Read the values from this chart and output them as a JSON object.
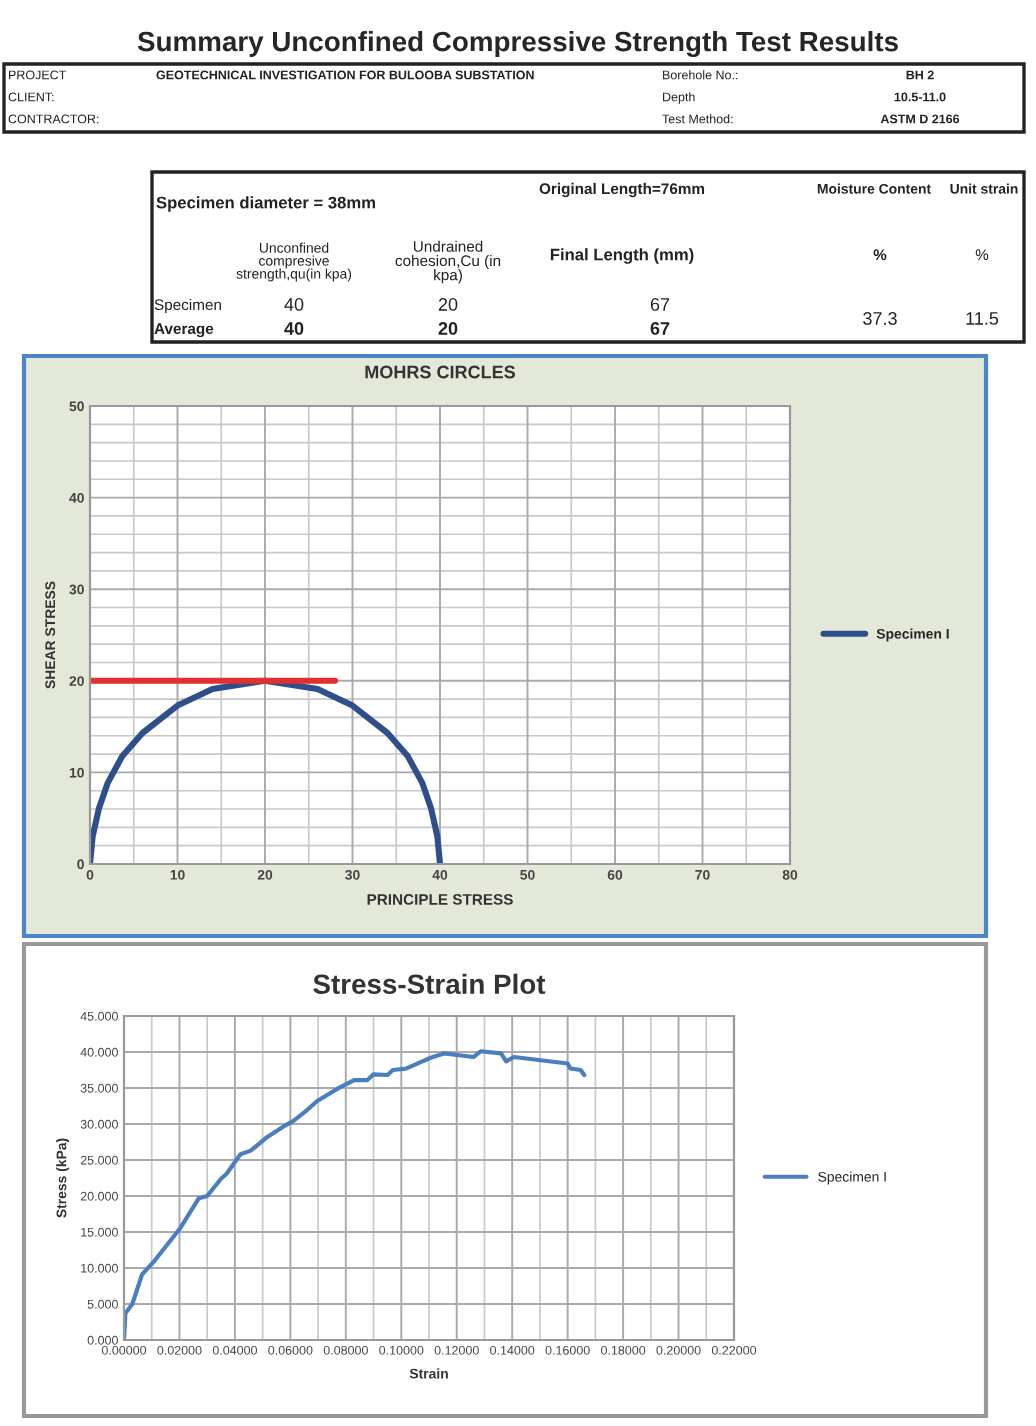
{
  "chart_data": [
    {
      "type": "other",
      "title": "Summary Unconfined Compressive Strength Test Results",
      "annotations": [
        "PROJECT",
        "GEOTECHNICAL INVESTIGATION FOR BULOOBA SUBSTATION",
        "Borehole No.:",
        "BH 2",
        "CLIENT:",
        "Depth",
        "10.5-11.0",
        "CONTRACTOR:",
        "Test Method:",
        "ASTM D 2166",
        "Specimen diameter = 38mm",
        "Original Length=76mm",
        "Moisture Content",
        "Unit strain",
        "Unconfined\ncompresive\nstrength,qu(in kpa)",
        "Undrained\ncohesion,Cu (in\nkpa)",
        "Final Length (mm)",
        "%",
        "%",
        "Specimen",
        "40",
        "20",
        "67",
        "37.3",
        "11.5",
        "Average",
        "40",
        "20",
        "67"
      ]
    },
    {
      "type": "line",
      "title": "MOHRS CIRCLES",
      "xlabel": "PRINCIPLE STRESS",
      "ylabel": "SHEAR STRESS",
      "xlim": [
        0,
        80
      ],
      "xticks": [
        0,
        10,
        20,
        30,
        40,
        50,
        60,
        70,
        80
      ],
      "ylim": [
        0,
        50
      ],
      "yticks": [
        0,
        10,
        20,
        30,
        40,
        50
      ],
      "grid": true,
      "legend": "right",
      "series": [
        {
          "name": "Specimen I",
          "color": "#2f4f8a",
          "x": [
            0,
            0.3,
            1,
            2,
            3.7,
            6,
            10,
            14,
            20,
            26,
            30,
            34,
            36.3,
            38,
            39,
            39.7,
            40
          ],
          "values": [
            0,
            3,
            6,
            8.8,
            11.8,
            14.3,
            17.3,
            19.1,
            20,
            19.1,
            17.3,
            14.3,
            11.8,
            8.8,
            6,
            3,
            0
          ]
        },
        {
          "color": "#e03030",
          "x": [
            28,
            0
          ],
          "values": [
            20,
            20
          ]
        }
      ]
    },
    {
      "type": "line",
      "title": "Stress-Strain Plot",
      "xlabel": "Strain",
      "ylabel": "Stress (kPa)",
      "xlim": [
        0,
        0.22
      ],
      "xticks": [
        {
          "value": 0,
          "label": "0.00000"
        },
        {
          "value": 0.02,
          "label": "0.02000"
        },
        {
          "value": 0.04,
          "label": "0.04000"
        },
        {
          "value": 0.06,
          "label": "0.06000"
        },
        {
          "value": 0.08,
          "label": "0.08000"
        },
        {
          "value": 0.1,
          "label": "0.10000"
        },
        {
          "value": 0.12,
          "label": "0.12000"
        },
        {
          "value": 0.14,
          "label": "0.14000"
        },
        {
          "value": 0.16,
          "label": "0.16000"
        },
        {
          "value": 0.18,
          "label": "0.18000"
        },
        {
          "value": 0.2,
          "label": "0.20000"
        },
        {
          "value": 0.22,
          "label": "0.22000"
        }
      ],
      "ylim": [
        0,
        45
      ],
      "yticks": [
        {
          "value": 0,
          "label": "0.000"
        },
        {
          "value": 5,
          "label": "5.000"
        },
        {
          "value": 10,
          "label": "10.000"
        },
        {
          "value": 15,
          "label": "15.000"
        },
        {
          "value": 20,
          "label": "20.000"
        },
        {
          "value": 25,
          "label": "25.000"
        },
        {
          "value": 30,
          "label": "30.000"
        },
        {
          "value": 35,
          "label": "35.000"
        },
        {
          "value": 40,
          "label": "40.000"
        },
        {
          "value": 45,
          "label": "45.000"
        }
      ],
      "grid": true,
      "legend": "right",
      "series": [
        {
          "name": "Specimen I",
          "color": "#4a7ebf",
          "x": [
            0,
            0.0005,
            0.003,
            0.0065,
            0.011,
            0.0204,
            0.027,
            0.03,
            0.035,
            0.037,
            0.042,
            0.0457,
            0.0517,
            0.0577,
            0.061,
            0.065,
            0.0697,
            0.077,
            0.083,
            0.0878,
            0.09,
            0.095,
            0.097,
            0.1017,
            0.107,
            0.1106,
            0.1154,
            0.126,
            0.1286,
            0.136,
            0.1378,
            0.1406,
            0.16,
            0.161,
            0.1647,
            0.166
          ],
          "values": [
            0,
            3.7,
            5.0,
            9.1,
            11,
            15.6,
            19.7,
            20,
            22.4,
            23.1,
            25.8,
            26.3,
            28.2,
            29.7,
            30.4,
            31.6,
            33.2,
            34.9,
            36.1,
            36.1,
            36.9,
            36.8,
            37.5,
            37.7,
            38.6,
            39.2,
            39.8,
            39.3,
            40.1,
            39.8,
            38.7,
            39.3,
            38.4,
            37.7,
            37.5,
            36.8
          ]
        }
      ]
    }
  ]
}
